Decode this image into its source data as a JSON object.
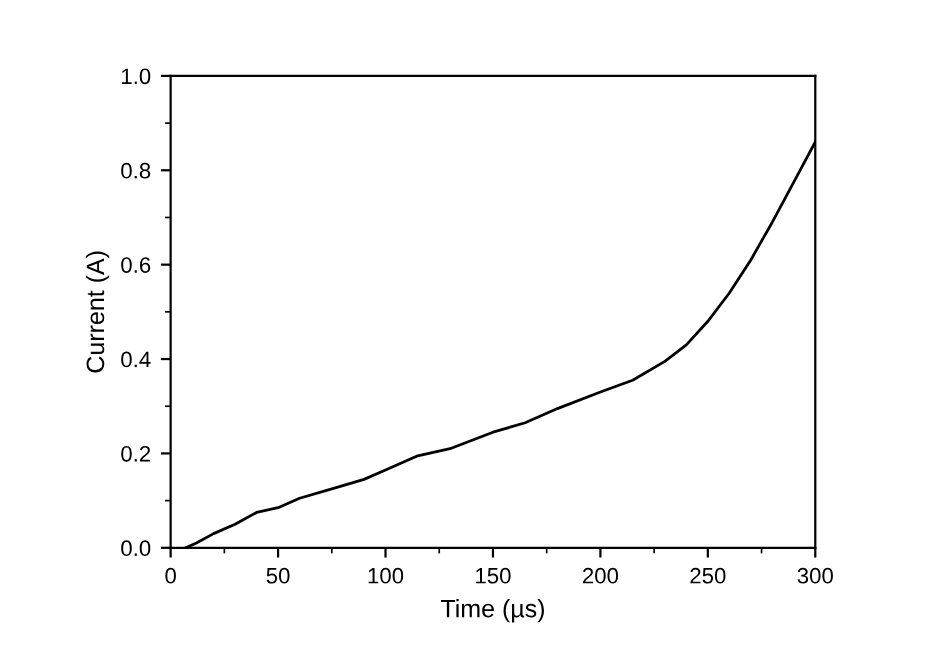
{
  "chart_data": {
    "type": "line",
    "xlabel": "Time (µs)",
    "ylabel": "Current (A)",
    "series": [
      {
        "color": "#000000",
        "x": [
          7,
          12,
          20,
          30,
          40,
          50,
          60,
          75,
          90,
          100,
          115,
          130,
          150,
          165,
          180,
          200,
          215,
          230,
          240,
          250,
          260,
          270,
          280,
          290,
          300
        ],
        "values": [
          0,
          0.01,
          0.03,
          0.05,
          0.075,
          0.085,
          0.105,
          0.125,
          0.145,
          0.165,
          0.195,
          0.21,
          0.245,
          0.265,
          0.295,
          0.33,
          0.355,
          0.395,
          0.43,
          0.48,
          0.54,
          0.61,
          0.69,
          0.775,
          0.86
        ]
      }
    ],
    "xlim": [
      0,
      300
    ],
    "xticks": [
      0,
      50,
      100,
      150,
      200,
      250,
      300
    ],
    "ylim": [
      0,
      1.0
    ],
    "yticks": [
      {
        "value": 0,
        "label": "0.0"
      },
      0.2,
      0.4,
      0.6,
      0.8,
      {
        "value": 1.0,
        "label": "1.0"
      }
    ],
    "grid": false,
    "legend": false,
    "marker": "none",
    "line_style": "solid"
  }
}
